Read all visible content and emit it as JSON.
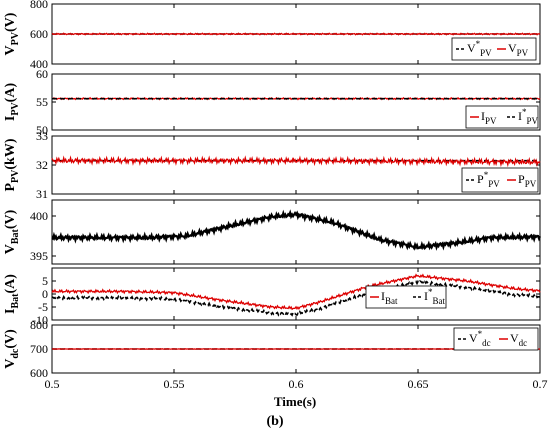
{
  "figure": {
    "caption": "(b)",
    "xlabel": "Time(s)",
    "colors": {
      "ref": "#000000",
      "meas": "#dd0000"
    }
  },
  "chart_data": [
    {
      "type": "line",
      "ylabel": "V_PV(V)",
      "ylim": [
        400,
        800
      ],
      "yticks": [
        400,
        600,
        800
      ],
      "xlim": [
        0.5,
        0.7
      ],
      "grid": false,
      "legend_position": "right",
      "legend": [
        "V*PV",
        "VPV"
      ],
      "series": [
        {
          "name": "V*PV",
          "style": "dash",
          "x": [
            0.5,
            0.7
          ],
          "y": [
            600,
            600
          ]
        },
        {
          "name": "VPV",
          "style": "solid",
          "x": [
            0.5,
            0.7
          ],
          "y": [
            600,
            600
          ],
          "ripple": 5
        }
      ]
    },
    {
      "type": "line",
      "ylabel": "I_PV(A)",
      "ylim": [
        50,
        60
      ],
      "yticks": [
        50,
        55,
        60
      ],
      "xlim": [
        0.5,
        0.7
      ],
      "grid": false,
      "legend_position": "right",
      "legend": [
        "IPV",
        "I*PV"
      ],
      "series": [
        {
          "name": "IPV",
          "style": "solid",
          "x": [
            0.5,
            0.7
          ],
          "y": [
            55.6,
            55.6
          ],
          "ripple": 0.15
        },
        {
          "name": "I*PV",
          "style": "dash",
          "x": [
            0.5,
            0.7
          ],
          "y": [
            55.6,
            55.6
          ]
        }
      ]
    },
    {
      "type": "line",
      "ylabel": "P_PV(kW)",
      "ylim": [
        31,
        33
      ],
      "yticks": [
        31,
        32,
        33
      ],
      "xlim": [
        0.5,
        0.7
      ],
      "grid": false,
      "legend_position": "right",
      "legend": [
        "P*PV",
        "PPV"
      ],
      "series": [
        {
          "name": "P*PV",
          "style": "dash",
          "x": [
            0.5,
            0.7
          ],
          "y": [
            32.15,
            32.15
          ]
        },
        {
          "name": "PPV",
          "style": "solid",
          "x": [
            0.5,
            0.6,
            0.7
          ],
          "y": [
            32.15,
            32.15,
            32.1
          ],
          "ripple": 0.1
        }
      ]
    },
    {
      "type": "line",
      "ylabel": "V_Bat(V)",
      "ylim": [
        394,
        402
      ],
      "yticks": [
        395,
        400
      ],
      "xlim": [
        0.5,
        0.7
      ],
      "grid": false,
      "series": [
        {
          "name": "VBat",
          "style": "solid",
          "color": "#000000",
          "x": [
            0.5,
            0.52,
            0.54,
            0.555,
            0.575,
            0.59,
            0.6,
            0.615,
            0.635,
            0.65,
            0.665,
            0.68,
            0.7
          ],
          "y": [
            397.3,
            397.3,
            397.3,
            397.5,
            398.9,
            399.9,
            400.2,
            399.2,
            397.0,
            396.1,
            396.6,
            397.3,
            397.4
          ],
          "ripple": 0.3
        }
      ]
    },
    {
      "type": "line",
      "ylabel": "I_Bat(A)",
      "ylim": [
        -10,
        10
      ],
      "yticks": [
        -10,
        -5,
        0,
        5
      ],
      "xlim": [
        0.5,
        0.7
      ],
      "grid": false,
      "legend_position": "center",
      "legend": [
        "IBat",
        "I*Bat"
      ],
      "series": [
        {
          "name": "IBat",
          "style": "solid",
          "x": [
            0.5,
            0.53,
            0.55,
            0.57,
            0.59,
            0.6,
            0.61,
            0.63,
            0.65,
            0.67,
            0.69,
            0.7
          ],
          "y": [
            1,
            1,
            0.5,
            -2.5,
            -5,
            -5.5,
            -3,
            3,
            7,
            5,
            2,
            1.2
          ],
          "ripple": 0.6
        },
        {
          "name": "I*Bat",
          "style": "dash",
          "x": [
            0.5,
            0.53,
            0.55,
            0.57,
            0.59,
            0.6,
            0.61,
            0.63,
            0.65,
            0.67,
            0.69,
            0.7
          ],
          "y": [
            -1.5,
            -1.5,
            -2,
            -5,
            -7.3,
            -7.8,
            -5.5,
            0.5,
            4.7,
            2.5,
            -0.3,
            -1
          ],
          "ripple": 0.6
        }
      ]
    },
    {
      "type": "line",
      "ylabel": "V_dc(V)",
      "ylim": [
        600,
        800
      ],
      "yticks": [
        600,
        700,
        800
      ],
      "xlim": [
        0.5,
        0.7
      ],
      "xticks": [
        0.5,
        0.55,
        0.6,
        0.65,
        0.7
      ],
      "grid": false,
      "legend_position": "top-right",
      "legend": [
        "V*dc",
        "Vdc"
      ],
      "series": [
        {
          "name": "V*dc",
          "style": "dash",
          "x": [
            0.5,
            0.7
          ],
          "y": [
            700,
            700
          ]
        },
        {
          "name": "Vdc",
          "style": "solid",
          "x": [
            0.5,
            0.7
          ],
          "y": [
            700,
            700
          ],
          "ripple": 1
        }
      ]
    }
  ],
  "labels": {
    "p0": {
      "main": "V",
      "sub": "PV",
      "unit": "(V)"
    },
    "p1": {
      "main": "I",
      "sub": "PV",
      "unit": "(A)"
    },
    "p2": {
      "main": "P",
      "sub": "PV",
      "unit": "(kW)"
    },
    "p3": {
      "main": "V",
      "sub": "Bat",
      "unit": "(V)"
    },
    "p4": {
      "main": "I",
      "sub": "Bat",
      "unit": "(A)"
    },
    "p5": {
      "main": "V",
      "sub": "dc",
      "unit": "(V)"
    }
  },
  "legends": {
    "p0": [
      {
        "pre": "-",
        "main": "V",
        "sup": "*",
        "sub": "PV",
        "style": "dash"
      },
      {
        "pre": "-",
        "main": "V",
        "sup": "",
        "sub": "PV",
        "style": "solid"
      }
    ],
    "p1": [
      {
        "pre": "",
        "main": "I",
        "sup": "",
        "sub": "PV",
        "style": "solid"
      },
      {
        "pre": "- -",
        "main": "I",
        "sup": "*",
        "sub": "PV",
        "style": "dash"
      }
    ],
    "p2": [
      {
        "pre": "- -",
        "main": "P",
        "sup": "*",
        "sub": "PV",
        "style": "dash"
      },
      {
        "pre": "",
        "main": "P",
        "sup": "",
        "sub": "PV",
        "style": "solid"
      }
    ],
    "p4": [
      {
        "pre": "",
        "main": "I",
        "sup": "",
        "sub": "Bat",
        "style": "solid"
      },
      {
        "pre": "- -",
        "main": "I",
        "sup": "*",
        "sub": "Bat",
        "style": "dash"
      }
    ],
    "p5": [
      {
        "pre": "-",
        "main": "V",
        "sup": "*",
        "sub": "dc",
        "style": "dash"
      },
      {
        "pre": "",
        "main": "V",
        "sup": "",
        "sub": "dc",
        "style": "solid"
      }
    ]
  }
}
